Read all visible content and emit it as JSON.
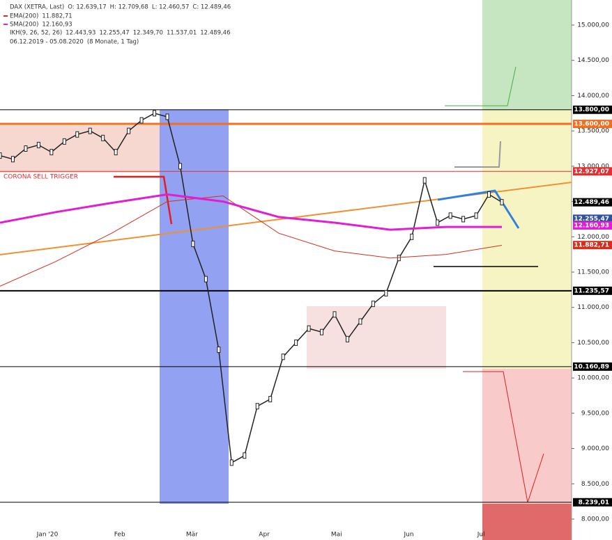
{
  "chart_data": {
    "type": "line",
    "header": {
      "instrument": "DAX (XETRA, Last)",
      "open": "O: 12.639,17",
      "high": "H: 12.709,68",
      "low": "L: 12.460,57",
      "close": "C: 12.489,46",
      "ema": "EMA(200)",
      "ema_value": "11.882,71",
      "sma": "SMA(200)",
      "sma_value": "12.160,93",
      "ikh": "IKH(9, 26, 52, 26)",
      "ikh_values": [
        "12.443,93",
        "12.255,47",
        "12.349,70",
        "11.537,01",
        "12.489,46"
      ],
      "period": "06.12.2019 - 05.08.2020",
      "period_note": "(8 Monate, 1 Tag)"
    },
    "annotation": "CORONA SELL TRIGGER",
    "xtick_labels": [
      "Jan '20",
      "Feb",
      "Mär",
      "Apr",
      "Mai",
      "Jun",
      "Jul"
    ],
    "ylim": [
      8000,
      15000
    ],
    "yticks": [
      {
        "value": 8000,
        "label": "8.000,00"
      },
      {
        "value": 8500,
        "label": "8.500,00"
      },
      {
        "value": 9000,
        "label": "9.000,00"
      },
      {
        "value": 9500,
        "label": "9.500,00"
      },
      {
        "value": 10000,
        "label": "10.000,00"
      },
      {
        "value": 10500,
        "label": "10.500,00"
      },
      {
        "value": 11000,
        "label": "11.000,00"
      },
      {
        "value": 11500,
        "label": "11.500,00"
      },
      {
        "value": 12000,
        "label": "12.000,00"
      },
      {
        "value": 12500,
        "label": "12.500,00"
      },
      {
        "value": 13000,
        "label": "13.000,00"
      },
      {
        "value": 13500,
        "label": "13.500,00"
      },
      {
        "value": 14000,
        "label": "14.000,00"
      },
      {
        "value": 14500,
        "label": "14.500,00"
      },
      {
        "value": 15000,
        "label": "15.000,00"
      }
    ],
    "series": [
      {
        "name": "DAX",
        "color": "#222222",
        "values": [
          13150,
          13100,
          13250,
          13300,
          13200,
          13350,
          13450,
          13500,
          13400,
          13200,
          13500,
          13650,
          13750,
          13700,
          13000,
          11900,
          11400,
          10400,
          8800,
          8900,
          9600,
          9700,
          10300,
          10500,
          10700,
          10650,
          10900,
          10550,
          10800,
          11050,
          11200,
          11700,
          12000,
          12800,
          12200,
          12300,
          12250,
          12300,
          12600,
          12490
        ]
      },
      {
        "name": "EMA(200)",
        "color": "#d03020",
        "values": [
          11300,
          11650,
          12050,
          12500,
          12580,
          12050,
          11800,
          11700,
          11750,
          11880
        ]
      },
      {
        "name": "SMA(200)",
        "color": "#e020d0",
        "values": [
          12200,
          12350,
          12480,
          12600,
          12500,
          12280,
          12200,
          12100,
          12140,
          12140
        ]
      }
    ],
    "levels": [
      {
        "value": 13800,
        "label": "13.800,00",
        "color": "#000000",
        "line": true
      },
      {
        "value": 13600,
        "label": "13.600,00",
        "color": "#f07020",
        "line": true
      },
      {
        "value": 12927.07,
        "label": "12.927,07",
        "color": "#e03030",
        "line": true
      },
      {
        "value": 12489.46,
        "label": "12.489,46",
        "color": "#000000",
        "line": false
      },
      {
        "value": 12255.47,
        "label": "12.255,47",
        "color": "#3050a0",
        "line": false
      },
      {
        "value": 12160.93,
        "label": "12.160,93",
        "color": "#e020d0",
        "line": false
      },
      {
        "value": 11882.71,
        "label": "11.882,71",
        "color": "#d03020",
        "line": false
      },
      {
        "value": 11235.57,
        "label": "11.235,57",
        "color": "#000000",
        "line": true
      },
      {
        "value": 10160.89,
        "label": "10.160,89",
        "color": "#000000",
        "line": true
      },
      {
        "value": 8239.01,
        "label": "8.239,01",
        "color": "#000000",
        "line": true
      }
    ]
  }
}
